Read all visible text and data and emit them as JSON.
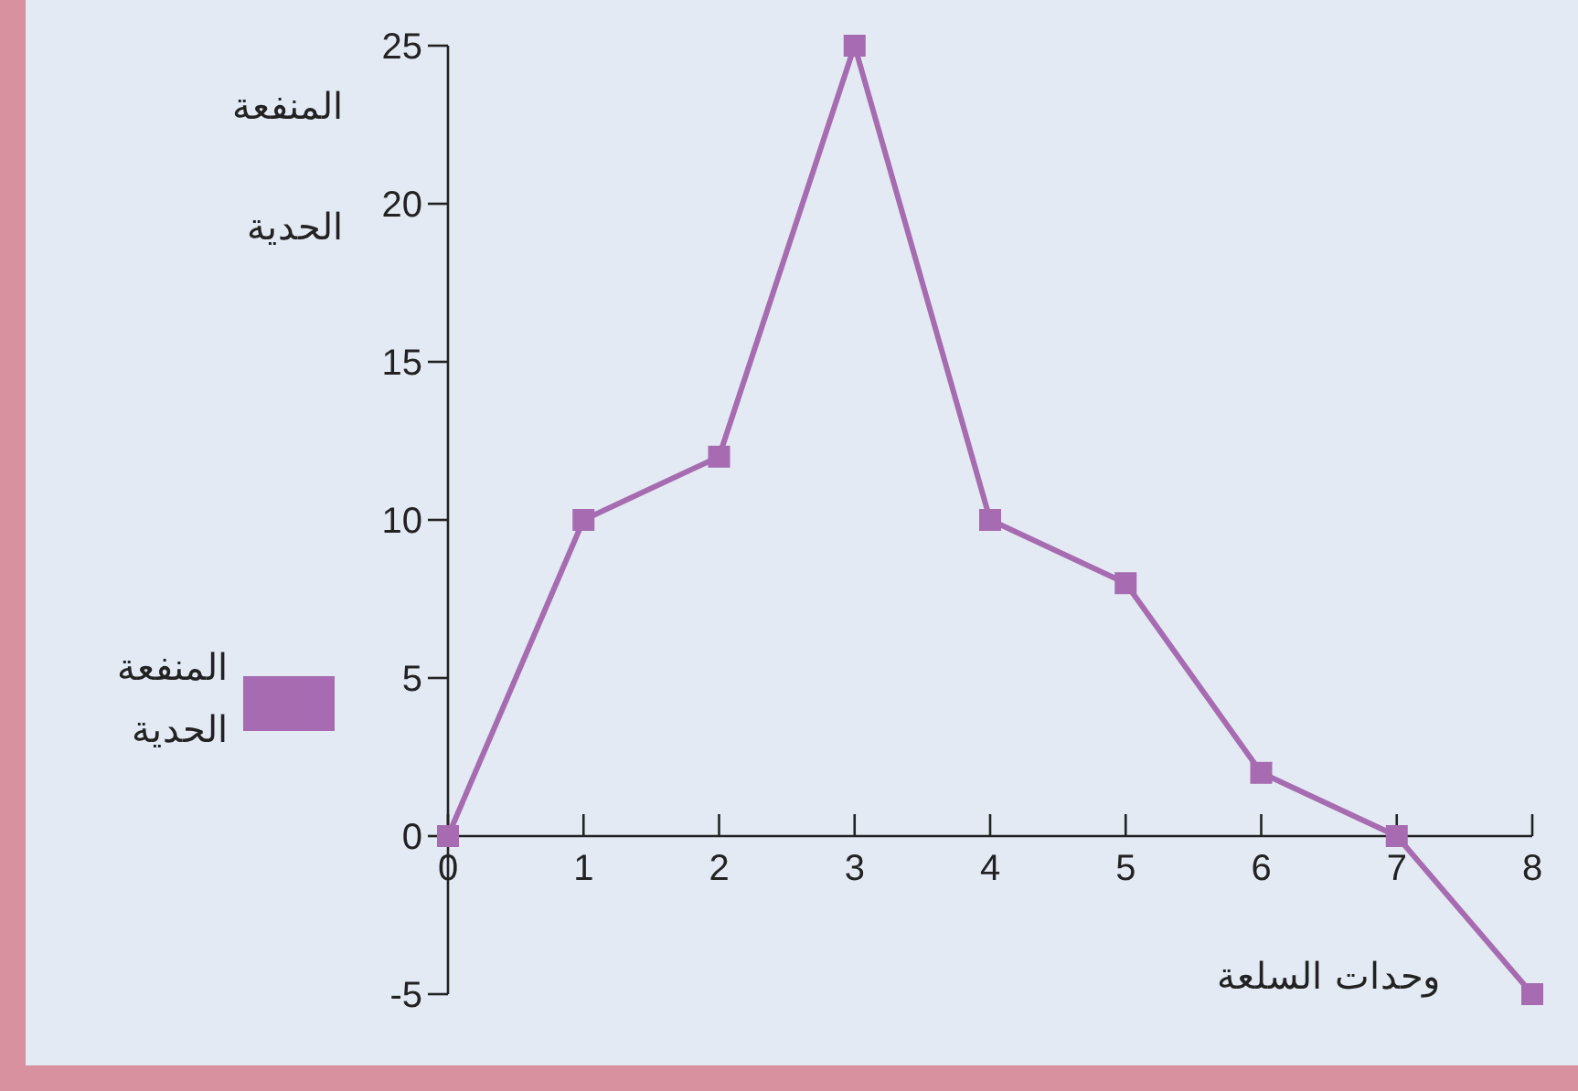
{
  "chart_data": {
    "type": "line",
    "ylabel": "المنفعة الحدية",
    "xlabel": "وحدات السلعة",
    "x": [
      0,
      1,
      2,
      3,
      4,
      5,
      6,
      7,
      8
    ],
    "series": [
      {
        "name": "المنفعة الحدية",
        "color": "#a66bb0",
        "values": [
          0,
          10,
          12,
          25,
          10,
          8,
          2,
          0,
          -5
        ]
      }
    ],
    "xlim": [
      0,
      8
    ],
    "xticks": [
      0,
      1,
      2,
      3,
      4,
      5,
      6,
      7,
      8
    ],
    "ylim": [
      -5,
      25
    ],
    "yticks": [
      -5,
      0,
      5,
      10,
      15,
      20,
      25
    ],
    "marker": "square",
    "line_style": "solid",
    "legend": "left",
    "grid": false
  }
}
